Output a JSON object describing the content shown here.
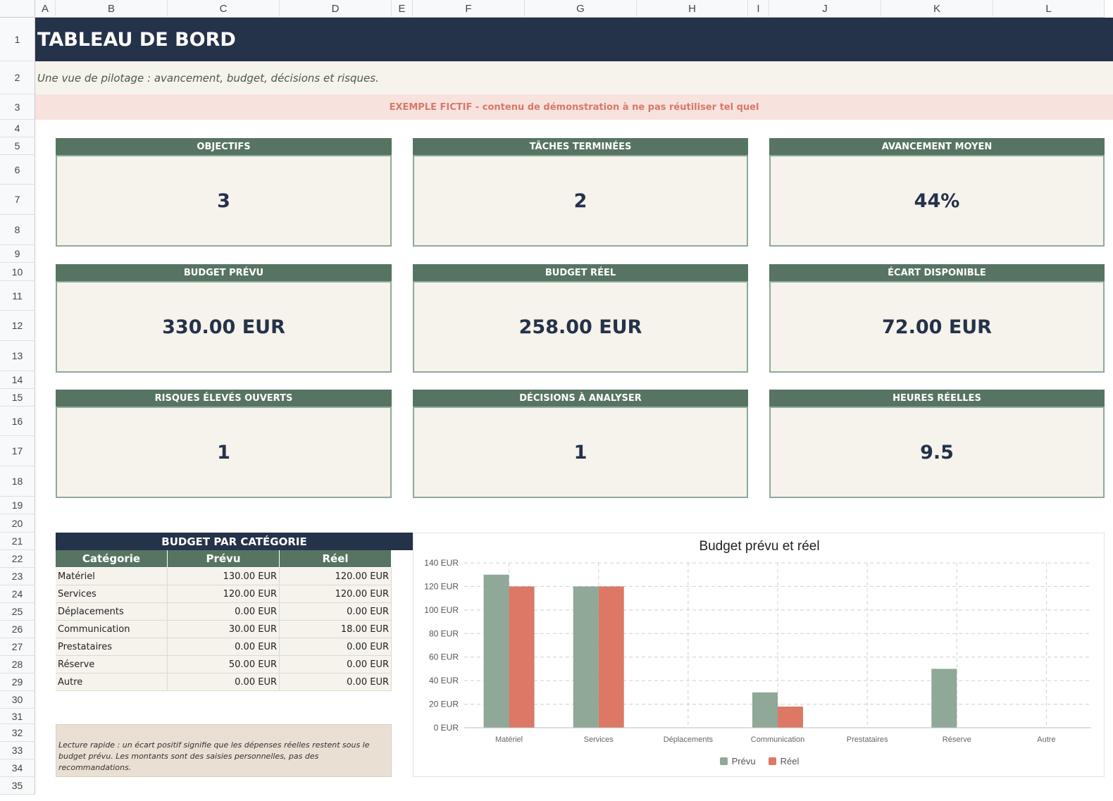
{
  "sheet": {
    "columns": [
      "A",
      "B",
      "C",
      "D",
      "E",
      "F",
      "G",
      "H",
      "I",
      "J",
      "K",
      "L"
    ],
    "rows": [
      "1",
      "2",
      "3",
      "4",
      "5",
      "6",
      "7",
      "8",
      "9",
      "10",
      "11",
      "12",
      "13",
      "14",
      "15",
      "16",
      "17",
      "18",
      "19",
      "20",
      "21",
      "22",
      "23",
      "24",
      "25",
      "26",
      "27",
      "28",
      "29",
      "30",
      "31",
      "32",
      "33",
      "34",
      "35"
    ]
  },
  "header": {
    "title": "TABLEAU DE BORD",
    "subtitle": "Une vue de pilotage : avancement, budget, décisions et risques.",
    "warning": "EXEMPLE FICTIF - contenu de démonstration à ne pas réutiliser tel quel"
  },
  "kpis": [
    {
      "label": "OBJECTIFS",
      "value": "3"
    },
    {
      "label": "TÂCHES TERMINÉES",
      "value": "2"
    },
    {
      "label": "AVANCEMENT MOYEN",
      "value": "44%"
    },
    {
      "label": "BUDGET PRÉVU",
      "value": "330.00 EUR"
    },
    {
      "label": "BUDGET RÉEL",
      "value": "258.00 EUR"
    },
    {
      "label": "ÉCART DISPONIBLE",
      "value": "72.00 EUR"
    },
    {
      "label": "RISQUES ÉLEVÉS OUVERTS",
      "value": "1"
    },
    {
      "label": "DÉCISIONS À ANALYSER",
      "value": "1"
    },
    {
      "label": "HEURES RÉELLES",
      "value": "9.5"
    }
  ],
  "budget_table": {
    "title": "BUDGET PAR CATÉGORIE",
    "headers": [
      "Catégorie",
      "Prévu",
      "Réel"
    ],
    "rows": [
      [
        "Matériel",
        "130.00 EUR",
        "120.00 EUR"
      ],
      [
        "Services",
        "120.00 EUR",
        "120.00 EUR"
      ],
      [
        "Déplacements",
        "0.00 EUR",
        "0.00 EUR"
      ],
      [
        "Communication",
        "30.00 EUR",
        "18.00 EUR"
      ],
      [
        "Prestataires",
        "0.00 EUR",
        "0.00 EUR"
      ],
      [
        "Réserve",
        "50.00 EUR",
        "0.00 EUR"
      ],
      [
        "Autre",
        "0.00 EUR",
        "0.00 EUR"
      ]
    ]
  },
  "note": "Lecture rapide : un écart positif signifie que les dépenses réelles restent sous le budget prévu. Les montants sont des saisies personnelles, pas des recommandations.",
  "colors": {
    "navy": "#24324a",
    "green": "#577463",
    "prevu": "#8fa898",
    "reel": "#dc7865",
    "warning_text": "#d9786a"
  },
  "chart_data": {
    "type": "bar",
    "title": "Budget prévu et réel",
    "categories": [
      "Matériel",
      "Services",
      "Déplacements",
      "Communication",
      "Prestataires",
      "Réserve",
      "Autre"
    ],
    "series": [
      {
        "name": "Prévu",
        "values": [
          130,
          120,
          0,
          30,
          0,
          50,
          0
        ]
      },
      {
        "name": "Réel",
        "values": [
          120,
          120,
          0,
          18,
          0,
          0,
          0
        ]
      }
    ],
    "ylim": [
      0,
      140
    ],
    "yticks": [
      "0 EUR",
      "20 EUR",
      "40 EUR",
      "60 EUR",
      "80 EUR",
      "100 EUR",
      "120 EUR",
      "140 EUR"
    ],
    "grid": true,
    "legend": "bottom"
  }
}
